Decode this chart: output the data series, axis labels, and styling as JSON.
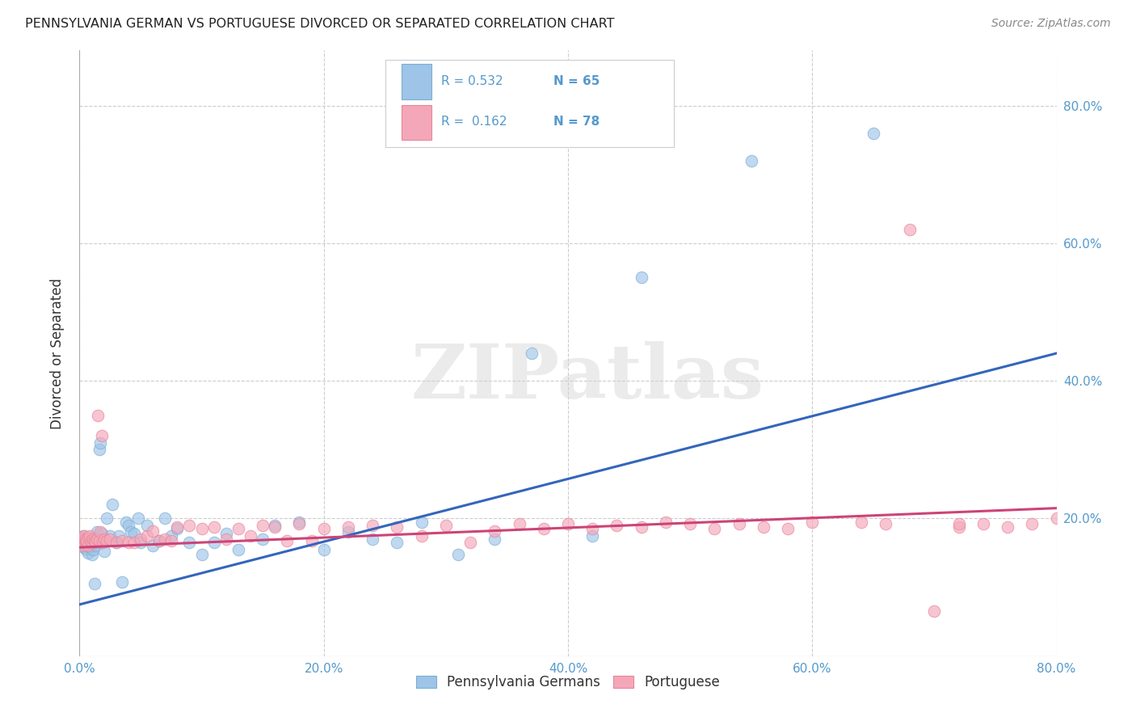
{
  "title": "PENNSYLVANIA GERMAN VS PORTUGUESE DIVORCED OR SEPARATED CORRELATION CHART",
  "source": "Source: ZipAtlas.com",
  "ylabel": "Divorced or Separated",
  "legend_labels": [
    "Pennsylvania Germans",
    "Portuguese"
  ],
  "blue_R": "0.532",
  "blue_N": "65",
  "pink_R": "0.162",
  "pink_N": "78",
  "blue_color": "#9EC4E8",
  "pink_color": "#F4A7B9",
  "blue_edge_color": "#7AAED4",
  "pink_edge_color": "#E8859A",
  "blue_line_color": "#3366BB",
  "pink_line_color": "#CC4477",
  "label_color": "#5599CC",
  "watermark": "ZIPatlas",
  "xlim": [
    0.0,
    0.8
  ],
  "ylim": [
    0.0,
    0.88
  ],
  "xticks": [
    0.0,
    0.2,
    0.4,
    0.6,
    0.8
  ],
  "yticks": [
    0.2,
    0.4,
    0.6,
    0.8
  ],
  "xtick_labels": [
    "0.0%",
    "20.0%",
    "40.0%",
    "60.0%",
    "80.0%"
  ],
  "ytick_labels": [
    "20.0%",
    "40.0%",
    "60.0%",
    "80.0%"
  ],
  "blue_x": [
    0.001,
    0.002,
    0.003,
    0.003,
    0.004,
    0.004,
    0.005,
    0.006,
    0.006,
    0.007,
    0.007,
    0.008,
    0.008,
    0.009,
    0.01,
    0.01,
    0.011,
    0.012,
    0.013,
    0.014,
    0.015,
    0.016,
    0.017,
    0.018,
    0.018,
    0.019,
    0.02,
    0.022,
    0.025,
    0.027,
    0.03,
    0.032,
    0.035,
    0.038,
    0.04,
    0.042,
    0.045,
    0.048,
    0.05,
    0.055,
    0.06,
    0.065,
    0.07,
    0.075,
    0.08,
    0.09,
    0.1,
    0.11,
    0.12,
    0.13,
    0.15,
    0.16,
    0.18,
    0.2,
    0.22,
    0.24,
    0.26,
    0.28,
    0.31,
    0.34,
    0.37,
    0.42,
    0.46,
    0.55,
    0.65
  ],
  "blue_y": [
    0.17,
    0.165,
    0.158,
    0.175,
    0.16,
    0.168,
    0.163,
    0.17,
    0.155,
    0.165,
    0.15,
    0.162,
    0.172,
    0.158,
    0.165,
    0.148,
    0.155,
    0.105,
    0.16,
    0.18,
    0.168,
    0.3,
    0.31,
    0.165,
    0.178,
    0.168,
    0.152,
    0.2,
    0.175,
    0.22,
    0.165,
    0.175,
    0.108,
    0.195,
    0.19,
    0.18,
    0.178,
    0.2,
    0.165,
    0.19,
    0.16,
    0.168,
    0.2,
    0.175,
    0.185,
    0.165,
    0.148,
    0.165,
    0.178,
    0.155,
    0.17,
    0.19,
    0.195,
    0.155,
    0.18,
    0.17,
    0.165,
    0.195,
    0.148,
    0.17,
    0.44,
    0.175,
    0.55,
    0.72,
    0.76
  ],
  "pink_x": [
    0.001,
    0.002,
    0.003,
    0.004,
    0.004,
    0.005,
    0.005,
    0.006,
    0.007,
    0.007,
    0.008,
    0.009,
    0.01,
    0.011,
    0.012,
    0.013,
    0.014,
    0.015,
    0.016,
    0.017,
    0.018,
    0.019,
    0.02,
    0.022,
    0.025,
    0.03,
    0.035,
    0.04,
    0.045,
    0.05,
    0.055,
    0.06,
    0.065,
    0.07,
    0.075,
    0.08,
    0.09,
    0.1,
    0.11,
    0.12,
    0.13,
    0.14,
    0.15,
    0.16,
    0.17,
    0.18,
    0.19,
    0.2,
    0.22,
    0.24,
    0.26,
    0.28,
    0.3,
    0.32,
    0.34,
    0.36,
    0.38,
    0.4,
    0.42,
    0.44,
    0.46,
    0.48,
    0.5,
    0.52,
    0.54,
    0.56,
    0.58,
    0.6,
    0.64,
    0.66,
    0.7,
    0.72,
    0.74,
    0.76,
    0.78,
    0.8,
    0.68,
    0.72
  ],
  "pink_y": [
    0.172,
    0.168,
    0.16,
    0.17,
    0.175,
    0.165,
    0.17,
    0.168,
    0.172,
    0.16,
    0.175,
    0.168,
    0.165,
    0.17,
    0.168,
    0.165,
    0.17,
    0.35,
    0.168,
    0.18,
    0.32,
    0.165,
    0.17,
    0.168,
    0.17,
    0.165,
    0.168,
    0.165,
    0.165,
    0.17,
    0.175,
    0.182,
    0.168,
    0.17,
    0.168,
    0.188,
    0.19,
    0.185,
    0.188,
    0.17,
    0.185,
    0.175,
    0.19,
    0.188,
    0.168,
    0.192,
    0.168,
    0.185,
    0.188,
    0.19,
    0.188,
    0.175,
    0.19,
    0.165,
    0.182,
    0.192,
    0.185,
    0.192,
    0.185,
    0.19,
    0.188,
    0.195,
    0.192,
    0.185,
    0.192,
    0.188,
    0.185,
    0.195,
    0.195,
    0.192,
    0.065,
    0.188,
    0.192,
    0.188,
    0.192,
    0.2,
    0.62,
    0.192
  ],
  "blue_line_x": [
    0.0,
    0.8
  ],
  "blue_line_y": [
    0.075,
    0.44
  ],
  "pink_line_x": [
    0.0,
    0.8
  ],
  "pink_line_y": [
    0.158,
    0.215
  ]
}
